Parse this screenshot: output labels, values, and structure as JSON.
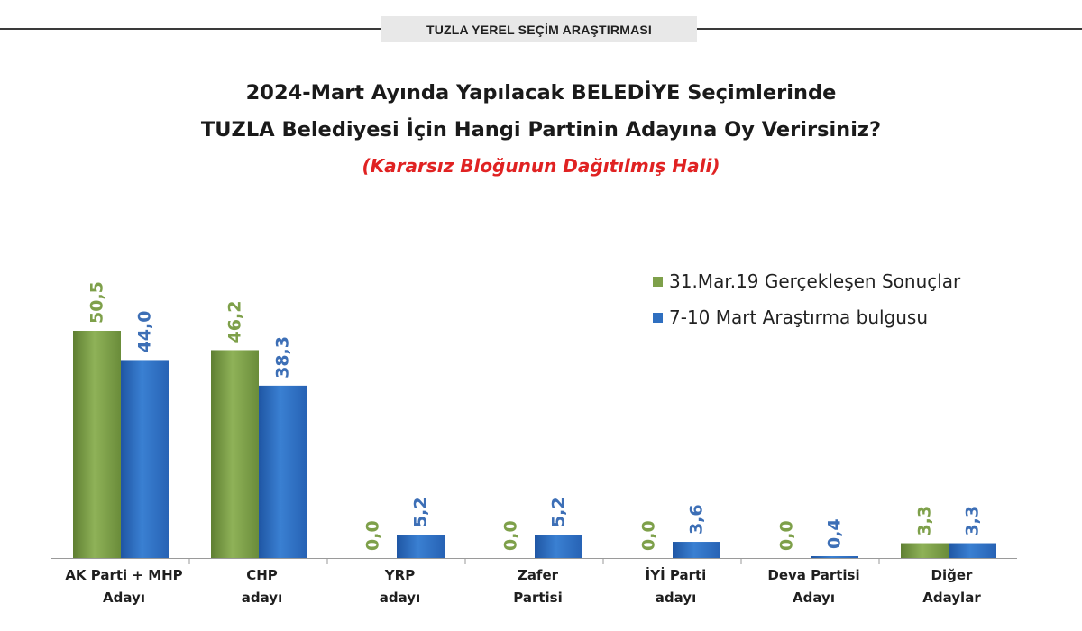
{
  "header": {
    "title": "TUZLA YEREL SEÇİM ARAŞTIRMASI"
  },
  "colors": {
    "series_green": "#7ea04a",
    "series_blue": "#2f6fc0",
    "label_green": "#7ea04a",
    "label_blue": "#3d6fb6",
    "subtitle_red": "#e02222",
    "axis": "#9a9a9a"
  },
  "chart_data": {
    "type": "bar",
    "title": "2024-Mart Ayında Yapılacak BELEDİYE Seçimlerinde",
    "title_line2": "TUZLA Belediyesi İçin Hangi Partinin Adayına Oy Verirsiniz?",
    "subtitle": "(Kararsız Bloğunun Dağıtılmış Hali)",
    "categories": [
      [
        "AK Parti + MHP",
        "Adayı"
      ],
      [
        "CHP",
        "adayı"
      ],
      [
        "YRP",
        "adayı"
      ],
      [
        "Zafer",
        "Partisi"
      ],
      [
        "İYİ Parti",
        "adayı"
      ],
      [
        "Deva Partisi",
        "Adayı"
      ],
      [
        "Diğer",
        "Adaylar"
      ]
    ],
    "series": [
      {
        "name": "31.Mar.19 Gerçekleşen Sonuçlar",
        "values": [
          50.5,
          46.2,
          0.0,
          0.0,
          0.0,
          0.0,
          3.3
        ],
        "labels": [
          "50,5",
          "46,2",
          "0,0",
          "0,0",
          "0,0",
          "0,0",
          "3,3"
        ]
      },
      {
        "name": "7-10 Mart Araştırma bulgusu",
        "values": [
          44.0,
          38.3,
          5.2,
          5.2,
          3.6,
          0.4,
          3.3
        ],
        "labels": [
          "44,0",
          "38,3",
          "5,2",
          "5,2",
          "3,6",
          "0,4",
          "3,3"
        ]
      }
    ],
    "ylim": [
      0,
      50.5
    ],
    "legend_position": "top-right",
    "grid": false
  }
}
